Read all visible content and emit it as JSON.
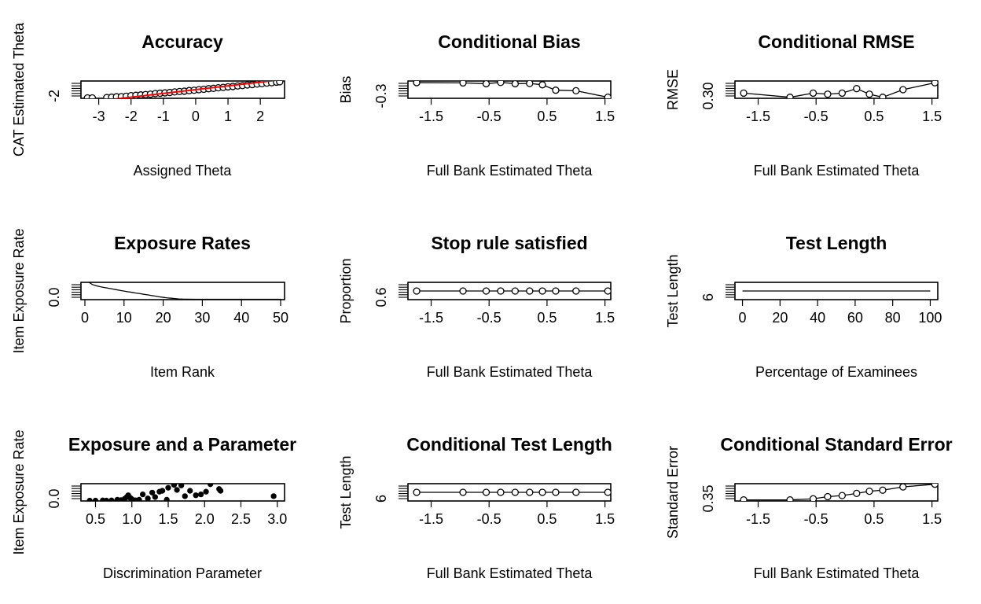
{
  "chart_data": [
    {
      "type": "scatter",
      "title": "Accuracy",
      "xlabel": "Assigned Theta",
      "ylabel": "CAT Estimated Theta",
      "xticks": [
        "-3",
        "-2",
        "-1",
        "0",
        "1",
        "2"
      ],
      "yticks": [
        "-2"
      ],
      "xlim": [
        -3.55,
        2.75
      ],
      "ylim": [
        -2.3,
        2.3
      ],
      "points": [
        [
          -3.35,
          -2.2
        ],
        [
          -3.2,
          -2.2
        ],
        [
          -2.75,
          -2.1
        ],
        [
          -2.6,
          -2.0
        ],
        [
          -2.45,
          -1.9
        ],
        [
          -2.3,
          -1.85
        ],
        [
          -2.15,
          -1.75
        ],
        [
          -2.0,
          -1.6
        ],
        [
          -1.85,
          -1.5
        ],
        [
          -1.7,
          -1.4
        ],
        [
          -1.55,
          -1.3
        ],
        [
          -1.4,
          -1.2
        ],
        [
          -1.25,
          -1.05
        ],
        [
          -1.1,
          -0.95
        ],
        [
          -0.95,
          -0.85
        ],
        [
          -0.8,
          -0.75
        ],
        [
          -0.65,
          -0.6
        ],
        [
          -0.5,
          -0.5
        ],
        [
          -0.35,
          -0.4
        ],
        [
          -0.2,
          -0.25
        ],
        [
          -0.05,
          -0.15
        ],
        [
          0.1,
          0.0
        ],
        [
          0.25,
          0.1
        ],
        [
          0.4,
          0.25
        ],
        [
          0.55,
          0.35
        ],
        [
          0.7,
          0.5
        ],
        [
          0.85,
          0.6
        ],
        [
          1.0,
          0.75
        ],
        [
          1.15,
          0.85
        ],
        [
          1.3,
          1.0
        ],
        [
          1.45,
          1.1
        ],
        [
          1.6,
          1.25
        ],
        [
          1.75,
          1.35
        ],
        [
          1.9,
          1.5
        ],
        [
          2.05,
          1.6
        ],
        [
          2.2,
          1.75
        ],
        [
          2.35,
          1.85
        ],
        [
          2.5,
          2.0
        ],
        [
          2.6,
          2.1
        ]
      ],
      "ref_line": {
        "color": "#ff0000",
        "from": [
          -3.55,
          -3.55
        ],
        "to": [
          2.75,
          2.75
        ]
      }
    },
    {
      "type": "line",
      "title": "Conditional Bias",
      "xlabel": "Full Bank Estimated Theta",
      "ylabel": "Bias",
      "xticks": [
        "-1.5",
        "-0.5",
        "0.5",
        "1.5"
      ],
      "yticks": [
        "-0.3"
      ],
      "xlim": [
        -1.9,
        1.6
      ],
      "ylim": [
        -0.32,
        0.0
      ],
      "x": [
        -1.75,
        -0.95,
        -0.55,
        -0.3,
        -0.05,
        0.2,
        0.42,
        0.65,
        1.0,
        1.55
      ],
      "y": [
        -0.03,
        -0.035,
        -0.05,
        -0.025,
        -0.05,
        -0.045,
        -0.07,
        -0.17,
        -0.18,
        -0.3
      ]
    },
    {
      "type": "line",
      "title": "Conditional RMSE",
      "xlabel": "Full Bank Estimated Theta",
      "ylabel": "RMSE",
      "xticks": [
        "-1.5",
        "-0.5",
        "0.5",
        "1.5"
      ],
      "yticks": [
        "0.30"
      ],
      "xlim": [
        -1.9,
        1.6
      ],
      "ylim": [
        0.295,
        0.345
      ],
      "x": [
        -1.75,
        -0.95,
        -0.55,
        -0.3,
        -0.05,
        0.2,
        0.42,
        0.65,
        1.0,
        1.55
      ],
      "y": [
        0.31,
        0.298,
        0.31,
        0.307,
        0.31,
        0.323,
        0.307,
        0.298,
        0.32,
        0.34
      ]
    },
    {
      "type": "line",
      "title": "Exposure Rates",
      "xlabel": "Item Rank",
      "ylabel": "Item Exposure Rate",
      "xticks": [
        "0",
        "10",
        "20",
        "30",
        "40",
        "50"
      ],
      "yticks": [
        "0.0"
      ],
      "xlim": [
        -1,
        51
      ],
      "ylim": [
        -0.02,
        0.95
      ],
      "x": [
        1,
        2,
        3,
        4,
        5,
        6,
        7,
        8,
        9,
        10,
        11,
        12,
        13,
        14,
        15,
        16,
        17,
        18,
        19,
        20,
        21,
        22,
        23,
        24,
        25,
        26,
        28,
        30,
        35,
        40,
        45,
        50
      ],
      "y": [
        0.95,
        0.82,
        0.75,
        0.7,
        0.66,
        0.62,
        0.58,
        0.54,
        0.5,
        0.46,
        0.42,
        0.39,
        0.35,
        0.32,
        0.28,
        0.25,
        0.21,
        0.18,
        0.14,
        0.11,
        0.08,
        0.06,
        0.04,
        0.02,
        0.01,
        0.005,
        0.0,
        0.0,
        0.0,
        0.0,
        0.0,
        0.0
      ]
    },
    {
      "type": "line",
      "title": "Stop rule satisfied",
      "xlabel": "Full Bank Estimated Theta",
      "ylabel": "Proportion",
      "xticks": [
        "-1.5",
        "-0.5",
        "0.5",
        "1.5"
      ],
      "yticks": [
        "0.6"
      ],
      "xlim": [
        -1.9,
        1.6
      ],
      "ylim": [
        0.52,
        1.48
      ],
      "x": [
        -1.75,
        -0.95,
        -0.55,
        -0.3,
        -0.05,
        0.2,
        0.42,
        0.65,
        1.0,
        1.55
      ],
      "y": [
        1.0,
        1.0,
        1.0,
        1.0,
        1.0,
        1.0,
        1.0,
        1.0,
        1.0,
        1.0
      ]
    },
    {
      "type": "line",
      "title": "Test Length",
      "xlabel": "Percentage of Examinees",
      "ylabel": "Test Length",
      "xticks": [
        "0",
        "20",
        "40",
        "60",
        "80",
        "100"
      ],
      "yticks": [
        "6"
      ],
      "xlim": [
        -4,
        104
      ],
      "ylim": [
        5.5,
        10.5
      ],
      "x": [
        0,
        100
      ],
      "y": [
        8.0,
        8.0
      ],
      "markers": false
    },
    {
      "type": "scatter",
      "title": "Exposure and a Parameter",
      "xlabel": "Discrimination Parameter",
      "ylabel": "Item Exposure Rate",
      "xticks": [
        "0.5",
        "1.0",
        "1.5",
        "2.0",
        "2.5",
        "3.0"
      ],
      "yticks": [
        "0.0"
      ],
      "xlim": [
        0.3,
        3.1
      ],
      "ylim": [
        -0.02,
        0.95
      ],
      "points": [
        [
          0.42,
          0.0
        ],
        [
          0.5,
          0.0
        ],
        [
          0.6,
          0.01
        ],
        [
          0.65,
          0.0
        ],
        [
          0.72,
          0.01
        ],
        [
          0.8,
          0.05
        ],
        [
          0.85,
          0.03
        ],
        [
          0.9,
          0.1
        ],
        [
          0.93,
          0.2
        ],
        [
          0.95,
          0.3
        ],
        [
          0.98,
          0.15
        ],
        [
          1.0,
          0.08
        ],
        [
          1.05,
          0.02
        ],
        [
          1.1,
          0.05
        ],
        [
          1.15,
          0.35
        ],
        [
          1.22,
          0.12
        ],
        [
          1.28,
          0.45
        ],
        [
          1.32,
          0.2
        ],
        [
          1.38,
          0.5
        ],
        [
          1.42,
          0.55
        ],
        [
          1.48,
          0.05
        ],
        [
          1.5,
          0.72
        ],
        [
          1.58,
          0.88
        ],
        [
          1.62,
          0.6
        ],
        [
          1.68,
          0.85
        ],
        [
          1.73,
          0.25
        ],
        [
          1.8,
          0.55
        ],
        [
          1.88,
          0.3
        ],
        [
          1.95,
          0.35
        ],
        [
          2.02,
          0.5
        ],
        [
          2.08,
          0.92
        ],
        [
          2.2,
          0.65
        ],
        [
          2.22,
          0.55
        ],
        [
          2.95,
          0.25
        ]
      ]
    },
    {
      "type": "line",
      "title": "Conditional Test Length",
      "xlabel": "Full Bank Estimated Theta",
      "ylabel": "Test Length",
      "xticks": [
        "-1.5",
        "-0.5",
        "0.5",
        "1.5"
      ],
      "yticks": [
        "6"
      ],
      "xlim": [
        -1.9,
        1.6
      ],
      "ylim": [
        5.5,
        10.5
      ],
      "x": [
        -1.75,
        -0.95,
        -0.55,
        -0.3,
        -0.05,
        0.2,
        0.42,
        0.65,
        1.0,
        1.55
      ],
      "y": [
        8.0,
        8.0,
        8.0,
        8.0,
        8.0,
        8.0,
        8.0,
        8.0,
        8.0,
        8.0
      ]
    },
    {
      "type": "line",
      "title": "Conditional Standard Error",
      "xlabel": "Full Bank Estimated Theta",
      "ylabel": "Standard Error",
      "xticks": [
        "-1.5",
        "-0.5",
        "0.5",
        "1.5"
      ],
      "yticks": [
        "0.35"
      ],
      "xlim": [
        -1.9,
        1.6
      ],
      "ylim": [
        0.34,
        0.5
      ],
      "x": [
        -1.75,
        -0.95,
        -0.55,
        -0.3,
        -0.05,
        0.2,
        0.42,
        0.65,
        1.0,
        1.55
      ],
      "y": [
        0.35,
        0.35,
        0.36,
        0.38,
        0.39,
        0.41,
        0.43,
        0.44,
        0.47,
        0.495
      ]
    }
  ]
}
